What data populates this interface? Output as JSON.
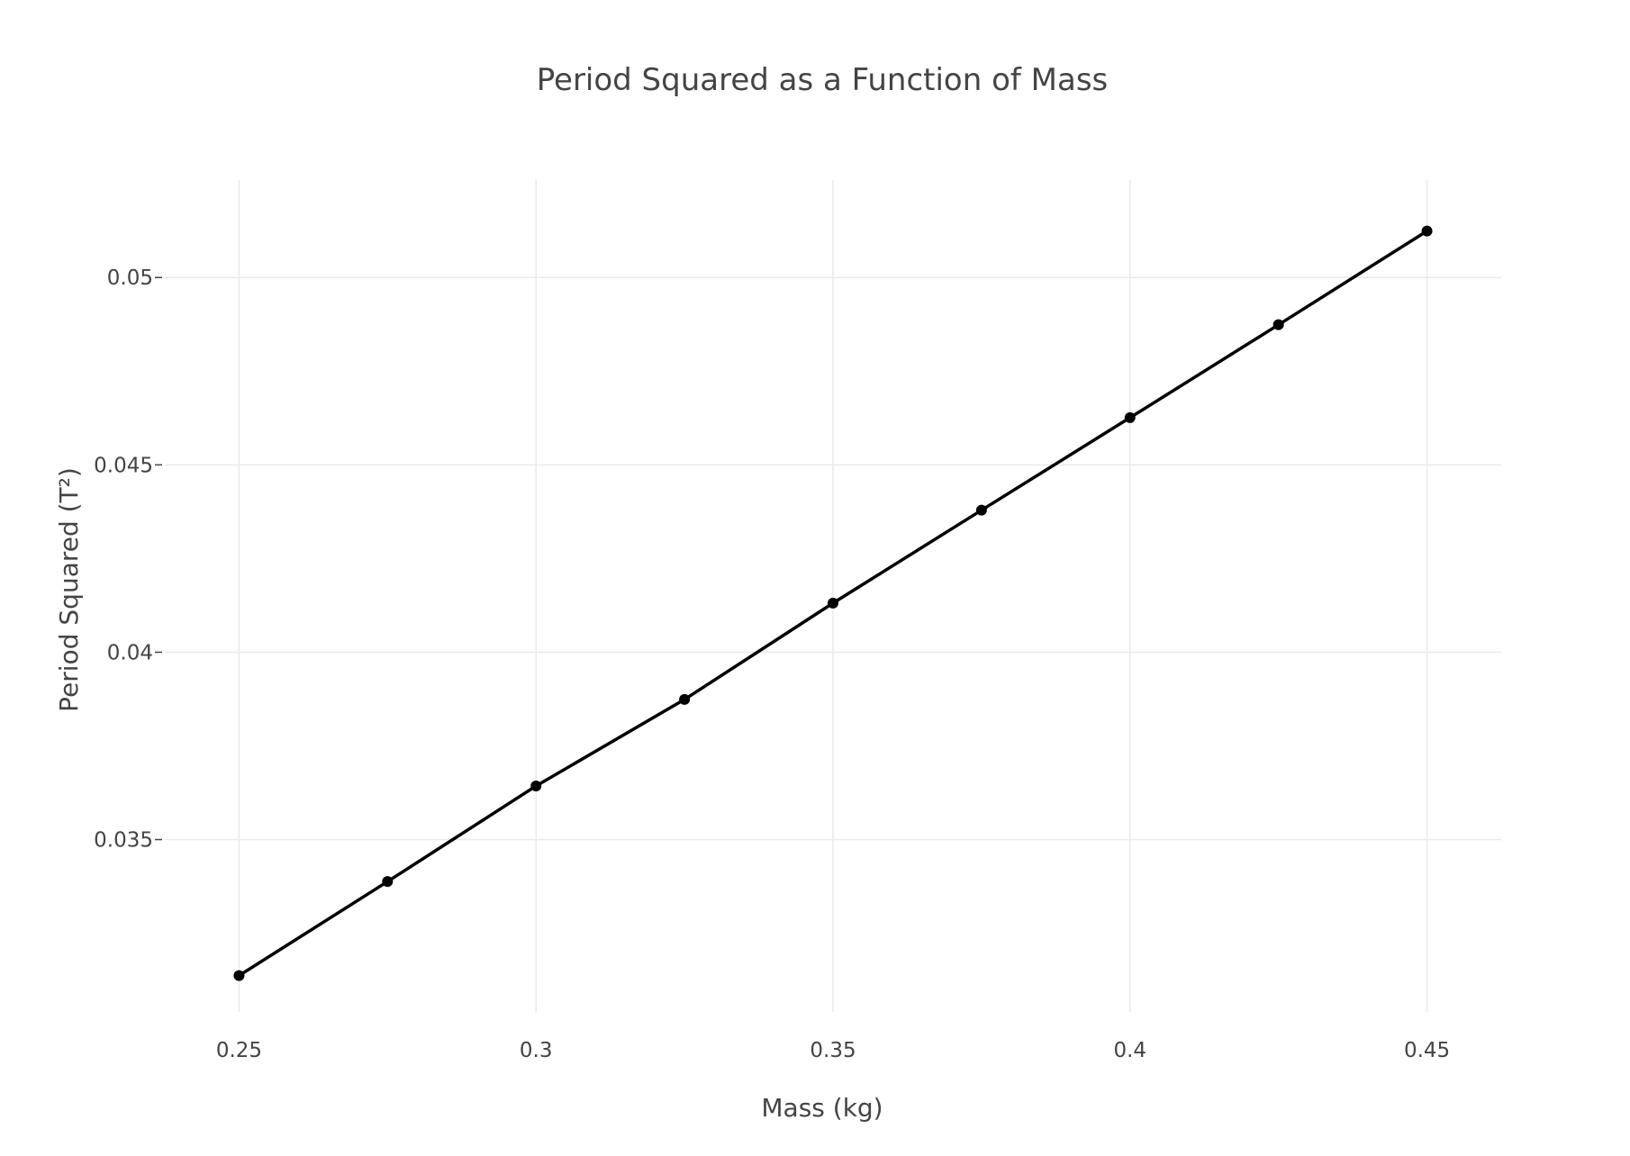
{
  "chart_data": {
    "type": "line",
    "title": "Period Squared as a Function of Mass",
    "xlabel": "Mass (kg)",
    "ylabel": "Period Squared (T²)",
    "xlim": [
      0.2375,
      0.4625
    ],
    "ylim": [
      0.0304,
      0.0526
    ],
    "x_ticks": [
      0.25,
      0.3,
      0.35,
      0.4,
      0.45
    ],
    "x_tick_labels": [
      "0.25",
      "0.3",
      "0.35",
      "0.4",
      "0.45"
    ],
    "y_ticks": [
      0.035,
      0.04,
      0.045,
      0.05
    ],
    "y_tick_labels": [
      "0.035",
      "0.04",
      "0.045",
      "0.05"
    ],
    "grid": true,
    "legend": "none",
    "series": [
      {
        "color": "#000000",
        "x": [
          0.25,
          0.275,
          0.3,
          0.325,
          0.35,
          0.375,
          0.4,
          0.425,
          0.45
        ],
        "y": [
          0.03137,
          0.03388,
          0.03643,
          0.03874,
          0.04131,
          0.04379,
          0.04626,
          0.04874,
          0.05124
        ]
      }
    ]
  }
}
